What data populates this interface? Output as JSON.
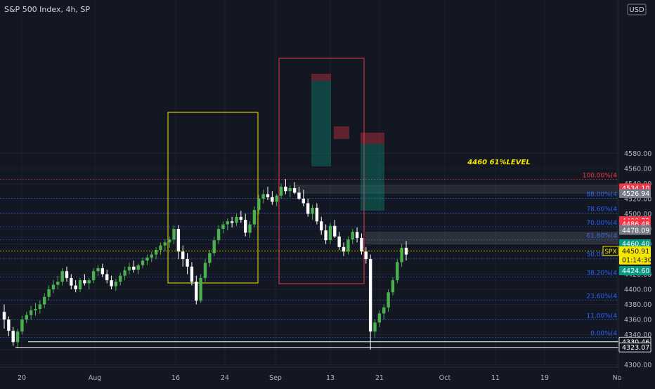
{
  "header": {
    "title": "S&P 500 Index, 4h, SP",
    "currency": "USD"
  },
  "price_axis": {
    "ticks": [
      "4560.00",
      "4540.00",
      "4520.00",
      "4500.00",
      "4480.00",
      "4460.00",
      "4440.00",
      "4420.00",
      "4400.00",
      "4380.00",
      "4360.00",
      "4340.00",
      "4320.00",
      "4300.00",
      "4580.00"
    ]
  },
  "time_axis": {
    "ticks": [
      "20",
      "Aug",
      "16",
      "24",
      "Sep",
      "13",
      "21",
      "Oct",
      "11",
      "19",
      "No"
    ]
  },
  "fib_levels": [
    {
      "label": "100.00%(4",
      "value": 4545.6
    },
    {
      "label": "88.00%(4",
      "value": 4520.5
    },
    {
      "label": "78.60%(4",
      "value": 4500.8
    },
    {
      "label": "70.00%(4",
      "value": 4482.8
    },
    {
      "label": "61.80%(4",
      "value": 4465.6
    },
    {
      "label": "50.00%(4",
      "value": 4440.9
    },
    {
      "label": "38.20%(4",
      "value": 4416.3
    },
    {
      "label": "23.60%(4",
      "value": 4385.7
    },
    {
      "label": "11.00%(4",
      "value": 4359.4
    },
    {
      "label": "0.00%(4",
      "value": 4336.4
    }
  ],
  "price_labels": [
    {
      "text": "4534.10",
      "value": 4534.1,
      "color": "#f23645"
    },
    {
      "text": "4526.94",
      "value": 4526.94,
      "color": "#787b86"
    },
    {
      "text": "4490.72",
      "value": 4490.72,
      "color": "#f23645"
    },
    {
      "text": "4486.48",
      "value": 4486.48,
      "color": "#f23645"
    },
    {
      "text": "4478.93",
      "value": 4478.93,
      "color": "#787b86"
    },
    {
      "text": "4478.09",
      "value": 4478.09,
      "color": "#787b86"
    },
    {
      "text": "4460.40",
      "value": 4460.4,
      "color": "#089981"
    },
    {
      "text": "4446.08",
      "value": 4446.08,
      "color": "#089981"
    },
    {
      "text": "4424.60",
      "value": 4424.6,
      "color": "#089981"
    },
    {
      "text": "4330.46",
      "value": 4330.46,
      "color": "#ffffff"
    },
    {
      "text": "4323.07",
      "value": 4323.07,
      "color": "#ffffff"
    }
  ],
  "current_price": {
    "symbol": "SPX",
    "price": "4450.91",
    "countdown": "01:14:30",
    "value": 4450.91,
    "color": "#f7e600"
  },
  "annotation": {
    "text": "4460 61%LEVEL",
    "value": 4460.4,
    "color": "#f7e600"
  },
  "colors": {
    "background": "#131722",
    "up": "#4caf50",
    "down": "#ffffff",
    "fib_red": "#f23645",
    "fib_blue": "#2962ff",
    "yellow_box": "#f7e600",
    "red_box": "#f23645"
  },
  "chart_data": {
    "type": "candlestick",
    "title": "S&P 500 Index, 4h, SP",
    "ylim": [
      4300,
      4590
    ],
    "candles": [
      [
        4370,
        4380,
        4348,
        4360
      ],
      [
        4360,
        4364,
        4338,
        4345
      ],
      [
        4345,
        4350,
        4325,
        4330
      ],
      [
        4330,
        4348,
        4322,
        4344
      ],
      [
        4344,
        4365,
        4340,
        4360
      ],
      [
        4360,
        4370,
        4355,
        4366
      ],
      [
        4366,
        4378,
        4360,
        4372
      ],
      [
        4372,
        4382,
        4365,
        4374
      ],
      [
        4374,
        4385,
        4368,
        4380
      ],
      [
        4380,
        4395,
        4375,
        4390
      ],
      [
        4390,
        4405,
        4385,
        4400
      ],
      [
        4400,
        4412,
        4395,
        4406
      ],
      [
        4406,
        4418,
        4400,
        4410
      ],
      [
        4410,
        4428,
        4405,
        4424
      ],
      [
        4424,
        4430,
        4410,
        4415
      ],
      [
        4415,
        4420,
        4400,
        4405
      ],
      [
        4405,
        4412,
        4396,
        4400
      ],
      [
        4400,
        4415,
        4396,
        4412
      ],
      [
        4412,
        4420,
        4405,
        4408
      ],
      [
        4408,
        4415,
        4400,
        4412
      ],
      [
        4412,
        4428,
        4408,
        4424
      ],
      [
        4424,
        4432,
        4418,
        4428
      ],
      [
        4428,
        4434,
        4416,
        4420
      ],
      [
        4420,
        4426,
        4408,
        4412
      ],
      [
        4412,
        4418,
        4400,
        4404
      ],
      [
        4404,
        4414,
        4398,
        4410
      ],
      [
        4410,
        4422,
        4405,
        4418
      ],
      [
        4418,
        4430,
        4412,
        4425
      ],
      [
        4425,
        4435,
        4420,
        4430
      ],
      [
        4430,
        4438,
        4422,
        4426
      ],
      [
        4426,
        4434,
        4420,
        4432
      ],
      [
        4432,
        4442,
        4428,
        4438
      ],
      [
        4438,
        4446,
        4432,
        4442
      ],
      [
        4442,
        4450,
        4436,
        4446
      ],
      [
        4446,
        4456,
        4440,
        4452
      ],
      [
        4452,
        4462,
        4446,
        4458
      ],
      [
        4458,
        4466,
        4450,
        4462
      ],
      [
        4462,
        4470,
        4455,
        4466
      ],
      [
        4466,
        4485,
        4460,
        4480
      ],
      [
        4480,
        4485,
        4440,
        4450
      ],
      [
        4450,
        4458,
        4430,
        4440
      ],
      [
        4440,
        4448,
        4420,
        4430
      ],
      [
        4430,
        4436,
        4405,
        4410
      ],
      [
        4410,
        4418,
        4380,
        4385
      ],
      [
        4385,
        4420,
        4382,
        4415
      ],
      [
        4415,
        4440,
        4410,
        4435
      ],
      [
        4435,
        4452,
        4430,
        4448
      ],
      [
        4448,
        4470,
        4444,
        4465
      ],
      [
        4465,
        4485,
        4460,
        4480
      ],
      [
        4480,
        4490,
        4474,
        4486
      ],
      [
        4486,
        4494,
        4478,
        4490
      ],
      [
        4490,
        4496,
        4482,
        4488
      ],
      [
        4488,
        4500,
        4484,
        4496
      ],
      [
        4496,
        4504,
        4488,
        4492
      ],
      [
        4492,
        4500,
        4470,
        4475
      ],
      [
        4475,
        4490,
        4468,
        4486
      ],
      [
        4486,
        4510,
        4482,
        4505
      ],
      [
        4505,
        4525,
        4500,
        4520
      ],
      [
        4520,
        4532,
        4514,
        4526
      ],
      [
        4526,
        4536,
        4518,
        4522
      ],
      [
        4522,
        4530,
        4512,
        4516
      ],
      [
        4516,
        4526,
        4510,
        4524
      ],
      [
        4524,
        4540,
        4520,
        4536
      ],
      [
        4536,
        4546,
        4526,
        4530
      ],
      [
        4530,
        4538,
        4522,
        4534
      ],
      [
        4534,
        4542,
        4526,
        4528
      ],
      [
        4528,
        4536,
        4518,
        4520
      ],
      [
        4520,
        4532,
        4510,
        4514
      ],
      [
        4514,
        4520,
        4496,
        4500
      ],
      [
        4500,
        4512,
        4492,
        4508
      ],
      [
        4508,
        4514,
        4486,
        4490
      ],
      [
        4490,
        4496,
        4472,
        4478
      ],
      [
        4478,
        4486,
        4460,
        4465
      ],
      [
        4465,
        4488,
        4460,
        4484
      ],
      [
        4484,
        4492,
        4468,
        4470
      ],
      [
        4470,
        4476,
        4452,
        4456
      ],
      [
        4456,
        4462,
        4444,
        4450
      ],
      [
        4450,
        4470,
        4446,
        4466
      ],
      [
        4466,
        4480,
        4460,
        4476
      ],
      [
        4476,
        4482,
        4462,
        4468
      ],
      [
        4468,
        4474,
        4446,
        4450
      ],
      [
        4450,
        4456,
        4434,
        4440
      ],
      [
        4440,
        4446,
        4320,
        4344
      ],
      [
        4344,
        4360,
        4336,
        4356
      ],
      [
        4356,
        4372,
        4350,
        4368
      ],
      [
        4368,
        4380,
        4360,
        4376
      ],
      [
        4376,
        4400,
        4370,
        4396
      ],
      [
        4396,
        4416,
        4392,
        4412
      ],
      [
        4412,
        4440,
        4408,
        4436
      ],
      [
        4436,
        4460,
        4430,
        4455
      ],
      [
        4455,
        4464,
        4438,
        4446
      ]
    ]
  }
}
